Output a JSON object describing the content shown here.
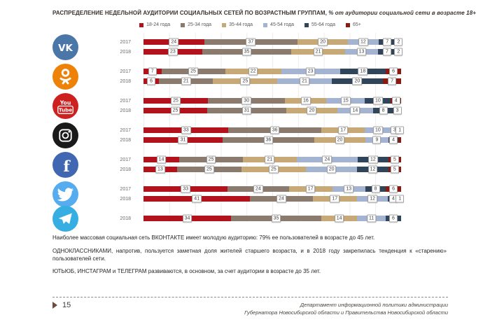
{
  "chart_data": {
    "type": "bar",
    "orientation": "horizontal-stacked",
    "title": "РАСПРЕДЕЛЕНИЕ НЕДЕЛЬНОЙ АУДИТОРИИ СОЦИАЛЬНЫХ СЕТЕЙ ПО ВОЗРАСТНЫМ ГРУППАМ,",
    "subtitle": " % от аудитории социальной сети в возрасте 18+",
    "legend_position": "top",
    "grid": true,
    "xlim": [
      0,
      100
    ],
    "age_groups": [
      "18-24 года",
      "25-34 года",
      "35-44 года",
      "45-54 года",
      "55-64 года",
      "65+"
    ],
    "colors": [
      "#b2121b",
      "#8a7b6e",
      "#c6a977",
      "#a4b3cf",
      "#31455a",
      "#8c1a10"
    ],
    "networks": [
      {
        "id": "vk",
        "name": "ВКонтакте",
        "icon": "vk-icon",
        "color": "#4a76a8",
        "rows": [
          {
            "year": "2017",
            "values": [
              24,
              37,
              20,
              12,
              7,
              2
            ]
          },
          {
            "year": "2018",
            "values": [
              23,
              35,
              21,
              13,
              7,
              2
            ]
          }
        ]
      },
      {
        "id": "ok",
        "name": "Одноклассники",
        "icon": "ok-icon",
        "color": "#ee8208",
        "rows": [
          {
            "year": "2017",
            "values": [
              7,
              25,
              22,
              23,
              18,
              6
            ]
          },
          {
            "year": "2018",
            "values": [
              6,
              21,
              25,
              21,
              20,
              7
            ]
          }
        ]
      },
      {
        "id": "youtube",
        "name": "YouTube",
        "icon": "youtube-icon",
        "color": "#cd201f",
        "rows": [
          {
            "year": "2017",
            "values": [
              25,
              30,
              16,
              15,
              10,
              4
            ]
          },
          {
            "year": "2018",
            "values": [
              25,
              31,
              20,
              14,
              8,
              3
            ]
          }
        ]
      },
      {
        "id": "instagram",
        "name": "Instagram",
        "icon": "instagram-icon",
        "color": "#1a1a1a",
        "rows": [
          {
            "year": "2017",
            "values": [
              33,
              36,
              17,
              10,
              3,
              1
            ]
          },
          {
            "year": "2018",
            "values": [
              31,
              36,
              20,
              9,
              4,
              1
            ],
            "labels": [
              "31",
              "36",
              "20",
              "9",
              "4",
              ""
            ]
          }
        ]
      },
      {
        "id": "facebook",
        "name": "Facebook",
        "icon": "facebook-icon",
        "color": "#4267b2",
        "rows": [
          {
            "year": "2017",
            "values": [
              14,
              25,
              21,
              24,
              12,
              5
            ]
          },
          {
            "year": "2018",
            "values": [
              13,
              25,
              25,
              20,
              12,
              5
            ]
          }
        ]
      },
      {
        "id": "twitter",
        "name": "Twitter",
        "icon": "twitter-icon",
        "color": "#55acee",
        "rows": [
          {
            "year": "2017",
            "values": [
              33,
              24,
              17,
              13,
              8,
              6
            ]
          },
          {
            "year": "2018",
            "values": [
              41,
              24,
              17,
              12,
              4,
              1
            ]
          }
        ]
      },
      {
        "id": "telegram",
        "name": "Telegram",
        "icon": "telegram-icon",
        "color": "#37aee2",
        "rows": [
          {
            "year": "2018",
            "values": [
              34,
              35,
              14,
              11,
              6
            ]
          }
        ]
      }
    ]
  },
  "notes": [
    "Наиболее массовая социальная сеть ВКОНТАКТЕ имеет молодую аудиторию: 79% ее пользователей в возрасте до 45 лет.",
    "ОДНОКЛАССНИКАМИ, напротив, пользуется заметная доля жителей старшего возраста, и в 2018 году закрепилась тенденция к «старению» пользователей сети.",
    "ЮТЬЮБ, ИНСТАГРАМ и ТЕЛЕГРАМ развиваются, в основном,  за счет аудитории в возрасте до 35 лет."
  ],
  "footer": {
    "page_number": "15",
    "credit_line1": "Департамент информационной политики администрации",
    "credit_line2": "Губернатора Новосибирской области и Правительства Новосибирской области"
  }
}
